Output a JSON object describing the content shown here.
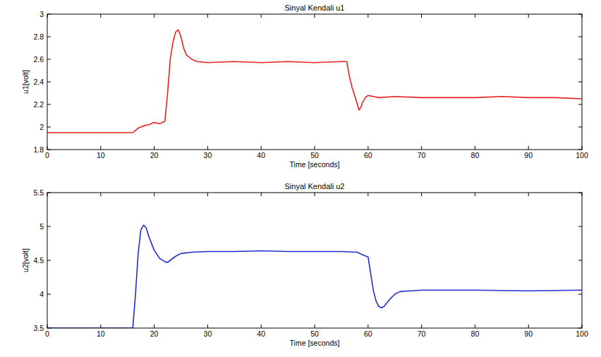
{
  "chart_data": [
    {
      "type": "line",
      "title": "Sinyal Kendali u1",
      "x_label": "Time [seconds]",
      "y_label": "u1[volt]",
      "x": [
        0,
        16,
        16.5,
        17,
        18,
        19,
        20,
        21,
        22,
        22.5,
        23,
        23.5,
        24,
        24.5,
        25,
        25.5,
        26,
        27,
        28,
        30,
        35,
        40,
        45,
        50,
        55,
        56,
        56.5,
        57,
        57.5,
        58,
        58.3,
        58.7,
        59,
        59.5,
        60,
        61,
        62,
        65,
        70,
        75,
        80,
        85,
        90,
        95,
        100
      ],
      "series": [
        {
          "color": "#e8221e",
          "values": [
            1.95,
            1.95,
            1.97,
            1.99,
            2.01,
            2.02,
            2.04,
            2.03,
            2.05,
            2.3,
            2.6,
            2.75,
            2.84,
            2.86,
            2.8,
            2.7,
            2.64,
            2.6,
            2.58,
            2.57,
            2.58,
            2.57,
            2.58,
            2.57,
            2.58,
            2.58,
            2.45,
            2.35,
            2.28,
            2.2,
            2.15,
            2.18,
            2.22,
            2.26,
            2.28,
            2.27,
            2.26,
            2.27,
            2.26,
            2.26,
            2.26,
            2.27,
            2.26,
            2.26,
            2.25
          ]
        }
      ],
      "xlim": [
        0,
        100
      ],
      "xticks": [
        0,
        10,
        20,
        30,
        40,
        50,
        60,
        70,
        80,
        90,
        100
      ],
      "ylim": [
        1.8,
        3
      ],
      "yticks": [
        1.8,
        2,
        2.2,
        2.4,
        2.6,
        2.8,
        3
      ],
      "grid": false
    },
    {
      "type": "line",
      "title": "Sinyal Kendali u2",
      "x_label": "Time [seconds]",
      "y_label": "u2[volt]",
      "x": [
        0,
        16,
        16.5,
        17,
        17.5,
        18,
        18.5,
        19,
        20,
        21,
        22,
        22.5,
        23,
        24,
        25,
        27,
        30,
        35,
        40,
        45,
        50,
        55,
        58,
        59,
        60,
        60.5,
        61,
        61.5,
        62,
        62.5,
        63,
        64,
        65,
        66,
        68,
        70,
        80,
        90,
        100
      ],
      "series": [
        {
          "color": "#1f2fd0",
          "values": [
            3.5,
            3.5,
            4.0,
            4.6,
            4.95,
            5.02,
            4.98,
            4.85,
            4.65,
            4.53,
            4.48,
            4.47,
            4.5,
            4.56,
            4.6,
            4.62,
            4.63,
            4.63,
            4.64,
            4.63,
            4.63,
            4.63,
            4.62,
            4.58,
            4.55,
            4.3,
            4.05,
            3.9,
            3.82,
            3.8,
            3.82,
            3.92,
            4.0,
            4.04,
            4.05,
            4.06,
            4.06,
            4.05,
            4.06
          ]
        }
      ],
      "xlim": [
        0,
        100
      ],
      "xticks": [
        0,
        10,
        20,
        30,
        40,
        50,
        60,
        70,
        80,
        90,
        100
      ],
      "ylim": [
        3.5,
        5.5
      ],
      "yticks": [
        3.5,
        4,
        4.5,
        5,
        5.5
      ],
      "grid": false
    }
  ]
}
